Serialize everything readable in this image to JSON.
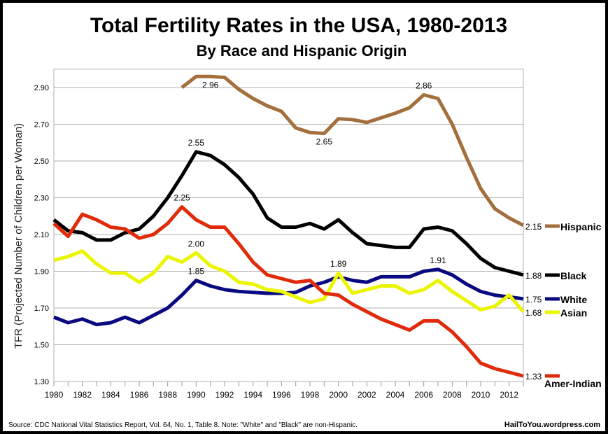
{
  "chart_data": {
    "type": "line",
    "title": "Total Fertility Rates in the USA, 1980-2013",
    "subtitle": "By Race and Hispanic Origin",
    "xlabel": "",
    "ylabel": "TFR (Projected Number of Children per Woman)",
    "xlim": [
      1980,
      2013
    ],
    "ylim": [
      1.3,
      3.0
    ],
    "x_ticks": [
      "1980",
      "1982",
      "1984",
      "1986",
      "1988",
      "1990",
      "1992",
      "1994",
      "1996",
      "1998",
      "2000",
      "2002",
      "2004",
      "2006",
      "2008",
      "2010",
      "2012"
    ],
    "y_ticks": [
      "1.30",
      "1.50",
      "1.70",
      "1.90",
      "2.10",
      "2.30",
      "2.50",
      "2.70",
      "2.90"
    ],
    "grid": true,
    "legend": "right",
    "source": "Source: CDC National Vital Statistics Report, Vol. 64, No. 1, Table 8.   Note: \"White\" and \"Black\" are non-Hispanic.",
    "credit": "HailToYou.wordpress.com",
    "series": [
      {
        "name": "Hispanic",
        "color": "#a36f3c",
        "start": 1989,
        "end_label": "2.15",
        "values": [
          2.9,
          2.96,
          2.96,
          2.955,
          2.89,
          2.84,
          2.8,
          2.77,
          2.68,
          2.655,
          2.65,
          2.73,
          2.725,
          2.71,
          2.735,
          2.76,
          2.79,
          2.86,
          2.84,
          2.7,
          2.52,
          2.35,
          2.24,
          2.19,
          2.15
        ],
        "annotations": [
          {
            "x": 1991,
            "label": "2.96"
          },
          {
            "x": 1999,
            "label": "2.65"
          },
          {
            "x": 2006,
            "label": "2.86"
          }
        ]
      },
      {
        "name": "Black",
        "color": "#000000",
        "start": 1980,
        "end_label": "1.88",
        "values": [
          2.18,
          2.12,
          2.11,
          2.07,
          2.07,
          2.11,
          2.13,
          2.2,
          2.3,
          2.42,
          2.55,
          2.53,
          2.48,
          2.41,
          2.32,
          2.19,
          2.14,
          2.14,
          2.16,
          2.13,
          2.18,
          2.11,
          2.05,
          2.04,
          2.03,
          2.03,
          2.13,
          2.14,
          2.12,
          2.05,
          1.97,
          1.92,
          1.9,
          1.88
        ],
        "annotations": [
          {
            "x": 1990,
            "label": "2.55"
          }
        ]
      },
      {
        "name": "White",
        "color": "#0a0a80",
        "start": 1980,
        "end_label": "1.75",
        "values": [
          1.65,
          1.62,
          1.64,
          1.61,
          1.62,
          1.65,
          1.62,
          1.66,
          1.7,
          1.77,
          1.85,
          1.82,
          1.8,
          1.79,
          1.785,
          1.78,
          1.78,
          1.785,
          1.82,
          1.84,
          1.87,
          1.85,
          1.84,
          1.87,
          1.87,
          1.87,
          1.9,
          1.91,
          1.88,
          1.83,
          1.79,
          1.77,
          1.76,
          1.75
        ],
        "annotations": [
          {
            "x": 1990,
            "label": "1.85"
          },
          {
            "x": 2007,
            "label": "1.91"
          }
        ]
      },
      {
        "name": "Asian",
        "color": "#ecf500",
        "start": 1980,
        "end_label": "1.68",
        "values": [
          1.96,
          1.98,
          2.01,
          1.94,
          1.89,
          1.89,
          1.84,
          1.89,
          1.98,
          1.95,
          2.0,
          1.93,
          1.9,
          1.84,
          1.83,
          1.8,
          1.79,
          1.76,
          1.73,
          1.75,
          1.89,
          1.78,
          1.8,
          1.82,
          1.82,
          1.78,
          1.8,
          1.85,
          1.79,
          1.74,
          1.69,
          1.71,
          1.77,
          1.68
        ],
        "annotations": [
          {
            "x": 1990,
            "label": "2.00"
          },
          {
            "x": 2000,
            "label": "1.89"
          }
        ]
      },
      {
        "name": "Amer-Indian",
        "color": "#e02a0a",
        "start": 1980,
        "end_label": "1.33",
        "values": [
          2.16,
          2.09,
          2.21,
          2.18,
          2.14,
          2.13,
          2.08,
          2.1,
          2.16,
          2.25,
          2.18,
          2.14,
          2.14,
          2.05,
          1.95,
          1.88,
          1.86,
          1.84,
          1.85,
          1.78,
          1.77,
          1.72,
          1.68,
          1.64,
          1.61,
          1.58,
          1.63,
          1.63,
          1.57,
          1.49,
          1.4,
          1.37,
          1.35,
          1.33
        ],
        "annotations": [
          {
            "x": 1989,
            "label": "2.25"
          }
        ]
      }
    ]
  }
}
